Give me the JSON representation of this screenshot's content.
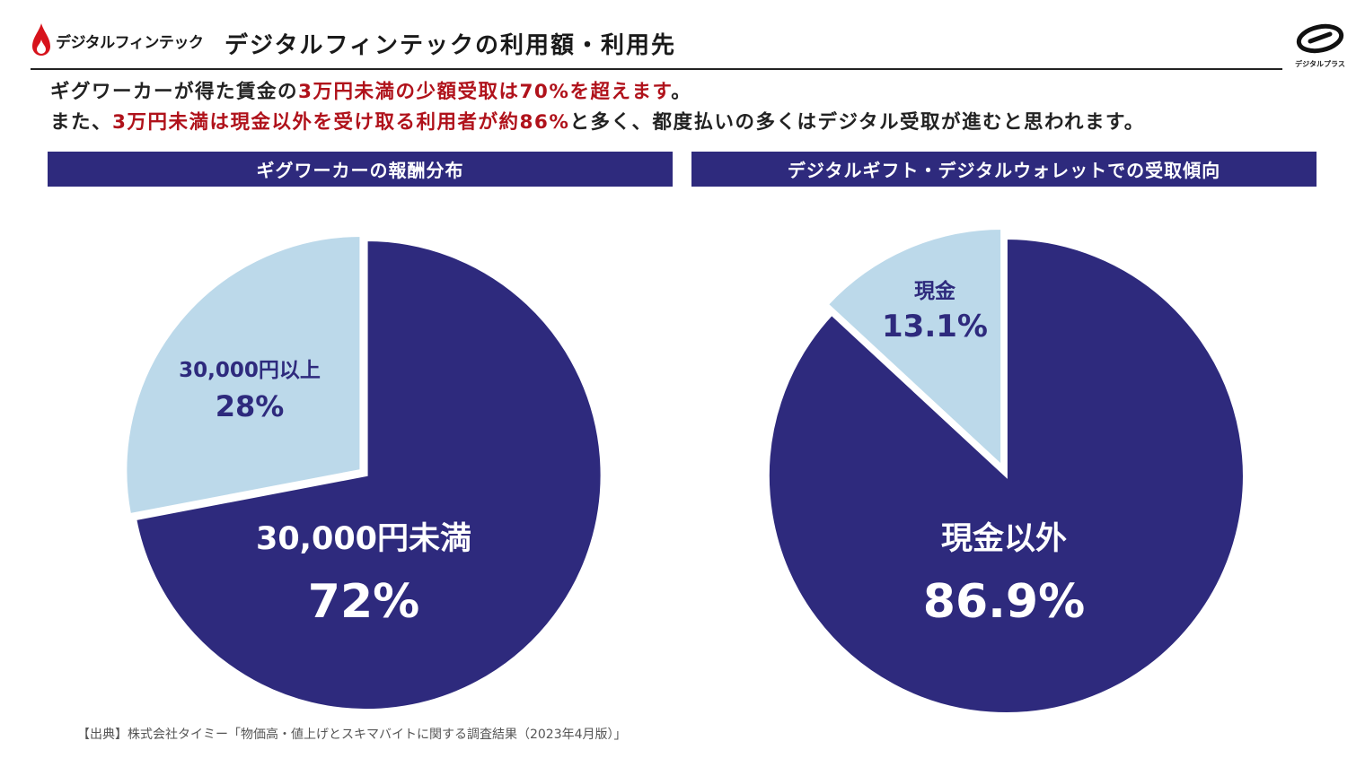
{
  "brand": {
    "name": "デジタルフィンテック",
    "logo_icon": "flame-drop-icon",
    "color": "#d7131c"
  },
  "page_title": "デジタルフィンテックの利用額・利用先",
  "corner_logo": {
    "icon": "digital-plus-logo-icon",
    "text": "デジタルプラス"
  },
  "intro": {
    "line1": {
      "a": "ギグワーカーが得た賃金の",
      "b": "3万円未満の少額受取は70%を超えます",
      "c": "。"
    },
    "line2": {
      "a": "また、",
      "b": "3万円未満は現金以外を受け取る利用者が約86%",
      "c": "と多く、都度払いの多くはデジタル受取が進むと思われます。"
    }
  },
  "colors": {
    "dark": "#2e2a7d",
    "light": "#bcd9ea",
    "accent_red": "#b0121b"
  },
  "chart_data": [
    {
      "type": "pie",
      "title": "ギグワーカーの報酬分布",
      "slices": [
        {
          "label": "30,000円未満",
          "value": 72,
          "display": "72%",
          "color": "dark"
        },
        {
          "label": "30,000円以上",
          "value": 28,
          "display": "28%",
          "color": "light"
        }
      ]
    },
    {
      "type": "pie",
      "title": "デジタルギフト・デジタルウォレットでの受取傾向",
      "slices": [
        {
          "label": "現金以外",
          "value": 86.9,
          "display": "86.9%",
          "color": "dark"
        },
        {
          "label": "現金",
          "value": 13.1,
          "display": "13.1%",
          "color": "light"
        }
      ]
    }
  ],
  "source": "【出典】株式会社タイミー「物価高・値上げとスキマバイトに関する調査結果（2023年4月版）」"
}
